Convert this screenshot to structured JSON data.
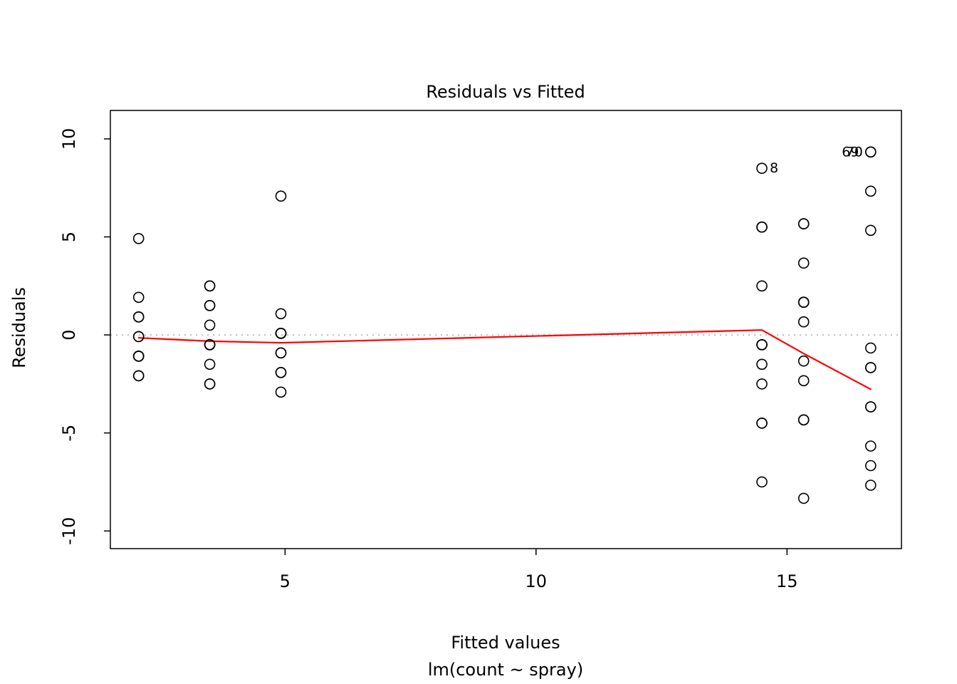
{
  "chart_data": {
    "type": "scatter",
    "title": "Residuals vs Fitted",
    "xlabel": "Fitted values",
    "sublabel": "lm(count ~ spray)",
    "ylabel": "Residuals",
    "xlim": [
      1.52,
      17.28
    ],
    "ylim": [
      -10.9,
      11.45
    ],
    "xticks": [
      5,
      10,
      15
    ],
    "yticks": [
      -10,
      -5,
      0,
      5,
      10
    ],
    "grid": false,
    "point_color": "#000000",
    "reference_line": {
      "y": 0,
      "color": "#bdbdbd",
      "style": "dotted"
    },
    "smoother": {
      "color": "#ff0000",
      "points": [
        [
          2.083,
          -0.15
        ],
        [
          3.5,
          -0.32
        ],
        [
          4.917,
          -0.4
        ],
        [
          14.5,
          0.25
        ],
        [
          15.333,
          -0.95
        ],
        [
          16.667,
          -2.77
        ]
      ]
    },
    "groups": [
      {
        "fitted": 2.083,
        "residuals": [
          -2.083,
          -1.083,
          4.917,
          -0.083,
          0.917,
          -1.083,
          -0.083,
          -1.083,
          0.917,
          -2.083,
          -1.083,
          1.917
        ]
      },
      {
        "fitted": 3.5,
        "residuals": [
          -0.5,
          1.5,
          -0.5,
          1.5,
          -0.5,
          2.5,
          -2.5,
          -2.5,
          -0.5,
          -1.5,
          2.5,
          0.5
        ]
      },
      {
        "fitted": 4.917,
        "residuals": [
          -1.917,
          0.083,
          7.083,
          1.083,
          -0.917,
          -1.917,
          0.083,
          0.083,
          0.083,
          0.083,
          -2.917,
          -0.917
        ]
      },
      {
        "fitted": 14.5,
        "residuals": [
          -4.5,
          -7.5,
          5.5,
          -0.5,
          -0.5,
          -2.5,
          -4.5,
          8.5,
          2.5,
          5.5,
          -0.5,
          -1.5
        ]
      },
      {
        "fitted": 15.333,
        "residuals": [
          -4.333,
          1.667,
          5.667,
          -4.333,
          0.667,
          -1.333,
          1.667,
          1.667,
          3.667,
          5.667,
          -8.333,
          -2.333
        ]
      },
      {
        "fitted": 16.667,
        "residuals": [
          -5.667,
          -7.667,
          -1.667,
          5.333,
          -1.667,
          -0.667,
          -3.667,
          -6.667,
          9.333,
          9.333,
          7.333,
          -3.667
        ]
      }
    ],
    "point_labels": [
      {
        "label": "8",
        "x": 14.5,
        "y": 8.5,
        "side": "right"
      },
      {
        "label": "70",
        "x": 16.667,
        "y": 9.333,
        "side": "left"
      },
      {
        "label": "69",
        "x": 16.59,
        "y": 9.333,
        "side": "left"
      }
    ]
  }
}
